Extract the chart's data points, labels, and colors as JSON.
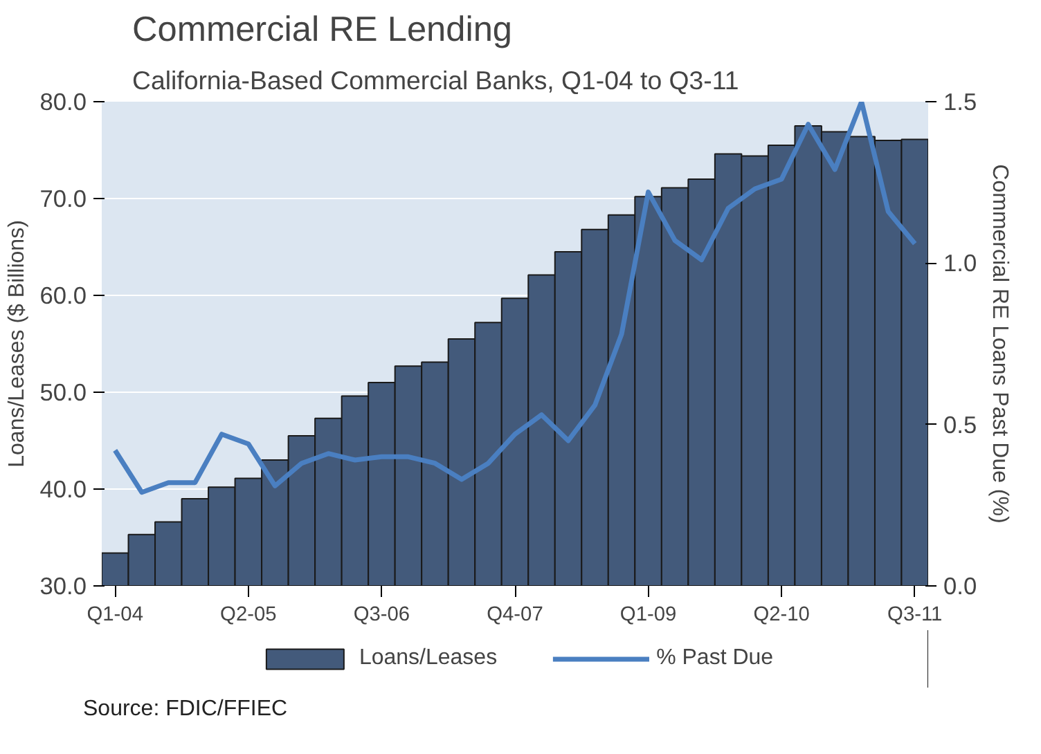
{
  "chart_data": {
    "type": "bar",
    "title": "Commercial RE Lending",
    "subtitle": "California-Based Commercial Banks, Q1-04 to Q3-11",
    "ylabel": "Loans/Leases ($ Billions)",
    "y2label": "Commercial RE Loans Past Due (%)",
    "categories": [
      "Q1-04",
      null,
      null,
      null,
      null,
      "Q2-05",
      null,
      null,
      null,
      null,
      "Q3-06",
      null,
      null,
      null,
      null,
      "Q4-07",
      null,
      null,
      null,
      null,
      "Q1-09",
      null,
      null,
      null,
      null,
      "Q2-10",
      null,
      null,
      null,
      null,
      "Q3-11"
    ],
    "series": [
      {
        "name": "Loans/Leases",
        "color": "#435a7b",
        "values": [
          33.4,
          35.3,
          36.6,
          39.0,
          40.2,
          41.1,
          43.0,
          45.5,
          47.3,
          49.6,
          51.0,
          52.7,
          53.1,
          55.5,
          57.2,
          59.7,
          62.1,
          64.5,
          66.8,
          68.3,
          70.2,
          71.1,
          72.0,
          74.6,
          74.4,
          75.5,
          77.5,
          76.9,
          76.4,
          76.0,
          76.1
        ]
      },
      {
        "name": "% Past Due",
        "type": "line",
        "axis": "y2",
        "color": "#4a7fc1",
        "values": [
          0.42,
          0.29,
          0.32,
          0.32,
          0.47,
          0.44,
          0.31,
          0.38,
          0.41,
          0.39,
          0.4,
          0.4,
          0.38,
          0.33,
          0.38,
          0.47,
          0.53,
          0.45,
          0.56,
          0.78,
          1.22,
          1.07,
          1.01,
          1.17,
          1.23,
          1.26,
          1.43,
          1.29,
          1.5,
          1.16,
          1.06
        ]
      }
    ],
    "ylim": [
      30,
      80
    ],
    "yticks": [
      {
        "value": 30,
        "label": "30.0"
      },
      {
        "value": 40,
        "label": "40.0"
      },
      {
        "value": 50,
        "label": "50.0"
      },
      {
        "value": 60,
        "label": "60.0"
      },
      {
        "value": 70,
        "label": "70.0"
      },
      {
        "value": 80,
        "label": "80.0"
      }
    ],
    "y2lim": [
      0,
      1.5
    ],
    "y2ticks": [
      {
        "value": 0,
        "label": "0.0"
      },
      {
        "value": 0.5,
        "label": "0.5"
      },
      {
        "value": 1,
        "label": "1.0"
      },
      {
        "value": 1.5,
        "label": "1.5"
      }
    ],
    "grid": "y",
    "legend": "bottom",
    "annotations": [
      "Source: FDIC/FFIEC"
    ]
  }
}
